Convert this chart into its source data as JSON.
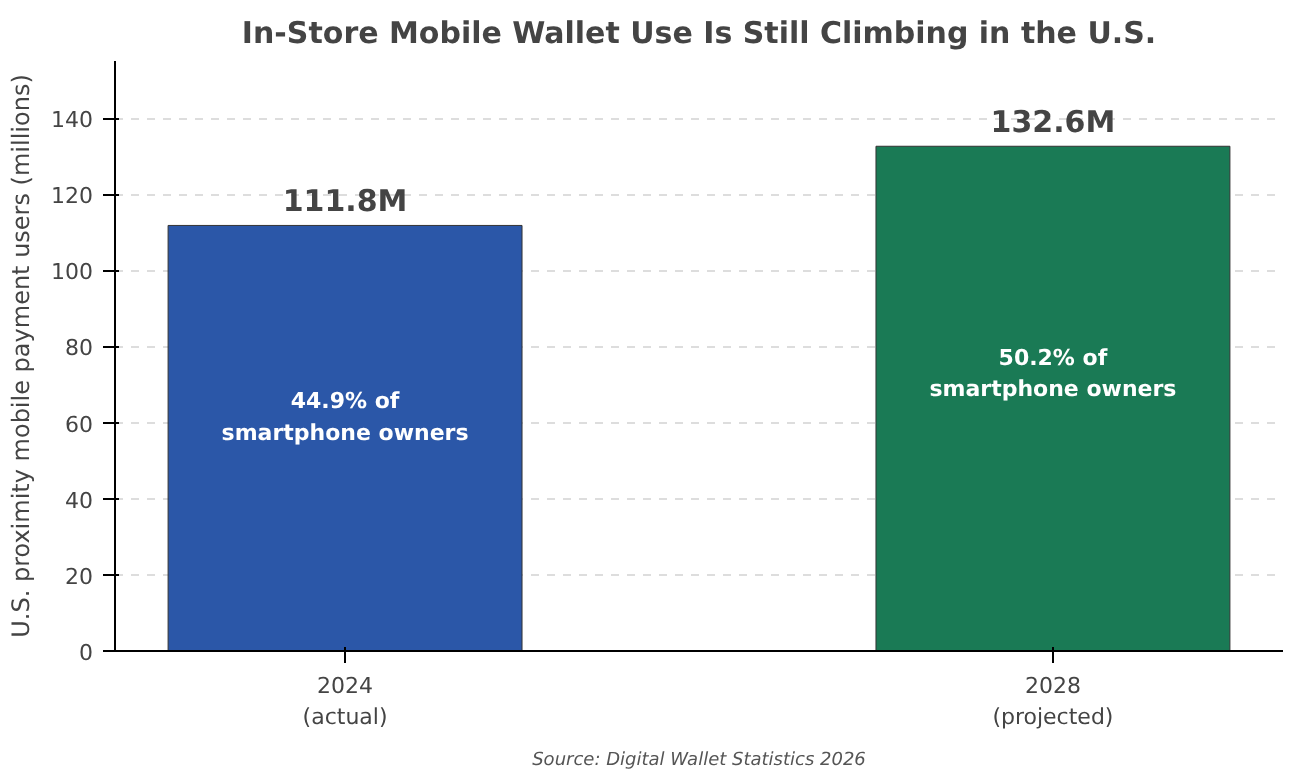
{
  "chart_data": {
    "type": "bar",
    "title": "In-Store Mobile Wallet Use Is Still Climbing in the U.S.",
    "ylabel": "U.S. proximity mobile payment users (millions)",
    "categories": [
      "2024\n(actual)",
      "2028\n(projected)"
    ],
    "values": [
      111.8,
      132.6
    ],
    "colors": [
      "#2b57a8",
      "#1a7a55"
    ],
    "value_labels": [
      "111.8M",
      "132.6M"
    ],
    "ylim": [
      0,
      155
    ],
    "yticks": [
      0,
      20,
      40,
      60,
      80,
      100,
      120,
      140
    ],
    "grid": "y",
    "annotations": [
      "44.9% of\nsmartphone owners",
      "50.2% of\nsmartphone owners",
      "Source: Digital Wallet Statistics 2026"
    ]
  }
}
